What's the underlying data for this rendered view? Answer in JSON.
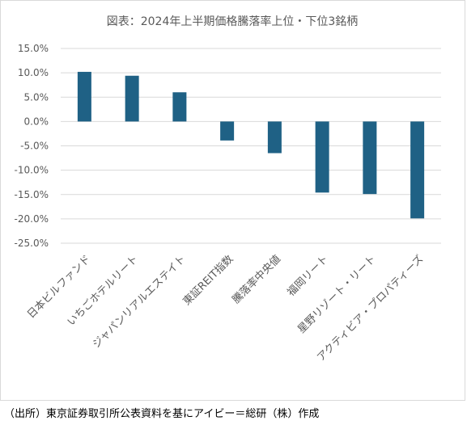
{
  "chart_data": {
    "type": "bar",
    "title": "図表：2024年上半期価格騰落率上位・下位3銘柄",
    "categories": [
      "日本ビルファンド",
      "いちごホテルリート",
      "ジャパンリアルエステイト",
      "東証REIT指数",
      "騰落率中央値",
      "福岡リート",
      "星野リゾート・リート",
      "アクティビア・プロパティーズ"
    ],
    "values": [
      10.2,
      9.4,
      6.0,
      -3.9,
      -6.5,
      -14.6,
      -14.9,
      -19.9
    ],
    "ylim": [
      -25,
      15
    ],
    "yticks": [
      -25,
      -20,
      -15,
      -10,
      -5,
      0,
      5,
      10,
      15
    ],
    "ytick_labels": [
      "-25.0%",
      "-20.0%",
      "-15.0%",
      "-10.0%",
      "-5.0%",
      "0.0%",
      "5.0%",
      "10.0%",
      "15.0%"
    ],
    "grid": true,
    "bar_color": "#1f6185",
    "grid_color": "#d9d9d9"
  },
  "footer": {
    "source": "（出所）東京証券取引所公表資料を基にアイビー＝総研（株）作成"
  }
}
